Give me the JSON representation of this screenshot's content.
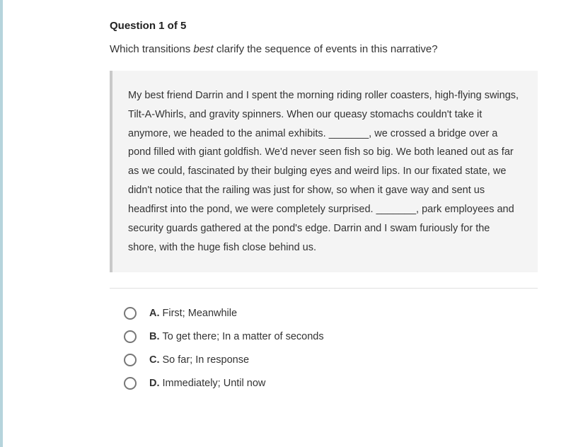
{
  "heading": "Question 1 of 5",
  "prompt_before": "Which transitions ",
  "prompt_em": "best",
  "prompt_after": " clarify the sequence of events in this narrative?",
  "passage": "My best friend Darrin and I spent the morning riding roller coasters, high-flying swings, Tilt-A-Whirls, and gravity spinners. When our queasy stomachs couldn't take it anymore, we headed to the animal exhibits. _______, we crossed a bridge over a pond filled with giant goldfish. We'd never seen fish so big. We both leaned out as far as we could, fascinated by their bulging eyes and weird lips. In our fixated state, we didn't notice that the railing was just for show, so when it gave way and sent us headfirst into the pond, we were completely surprised. _______, park employees and security guards gathered at the pond's edge. Darrin and I swam furiously for the shore, with the huge fish close behind us.",
  "options": [
    {
      "letter": "A.",
      "text": "First; Meanwhile"
    },
    {
      "letter": "B.",
      "text": "To get there; In a matter of seconds"
    },
    {
      "letter": "C.",
      "text": "So far; In response"
    },
    {
      "letter": "D.",
      "text": "Immediately; Until now"
    }
  ],
  "colors": {
    "left_edge": "#b6d4dc",
    "passage_bg": "#f4f4f4",
    "passage_border": "#c9c9c9",
    "divider": "#e0e0e0",
    "radio_border": "#777777",
    "text": "#333333"
  }
}
